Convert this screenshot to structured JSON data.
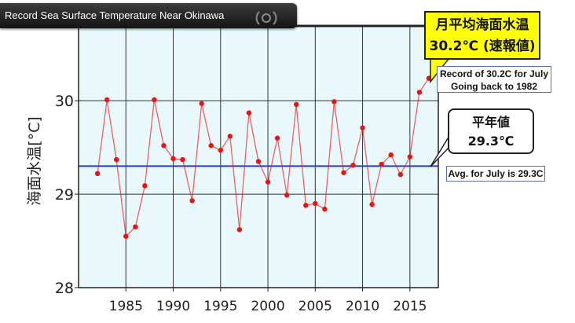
{
  "header": {
    "title": "Record Sea Surface Temperature Near Okinawa"
  },
  "callouts": {
    "record_jp_line1": "月平均海面水温",
    "record_jp_line2": "30.2℃ (速報値)",
    "record_en_line1": "Record of 30.2C for July",
    "record_en_line2": "Going back to 1982",
    "normal_jp_line1": "平年値",
    "normal_jp_line2": "29.3℃",
    "normal_en": "Avg. for July is 29.3C"
  },
  "colors": {
    "plot_background": "#e8f8fb",
    "series": "#ee1111",
    "average_line": "#2a3fb8",
    "callout_yellow": "#ffff00"
  },
  "chart_data": {
    "type": "line",
    "xlim": [
      1980,
      2018
    ],
    "ylim": [
      28,
      30.8
    ],
    "xticks": [
      1985,
      1990,
      1995,
      2000,
      2005,
      2010,
      2015
    ],
    "yticks": [
      28,
      29,
      30
    ],
    "ylabel": "海面水温[°C]",
    "grid": true,
    "x": [
      1982,
      1983,
      1984,
      1985,
      1986,
      1987,
      1988,
      1989,
      1990,
      1991,
      1992,
      1993,
      1994,
      1995,
      1996,
      1997,
      1998,
      1999,
      2000,
      2001,
      2002,
      2003,
      2004,
      2005,
      2006,
      2007,
      2008,
      2009,
      2010,
      2011,
      2012,
      2013,
      2014,
      2015,
      2016,
      2017
    ],
    "y": [
      29.22,
      30.01,
      29.37,
      28.55,
      28.65,
      29.09,
      30.01,
      29.52,
      29.38,
      29.37,
      28.93,
      29.97,
      29.52,
      29.47,
      29.62,
      28.62,
      29.87,
      29.35,
      29.13,
      29.6,
      28.99,
      29.96,
      28.88,
      28.9,
      28.84,
      29.99,
      29.23,
      29.31,
      29.71,
      28.89,
      29.32,
      29.42,
      29.21,
      29.4,
      30.09,
      30.24
    ],
    "average": 29.3
  }
}
